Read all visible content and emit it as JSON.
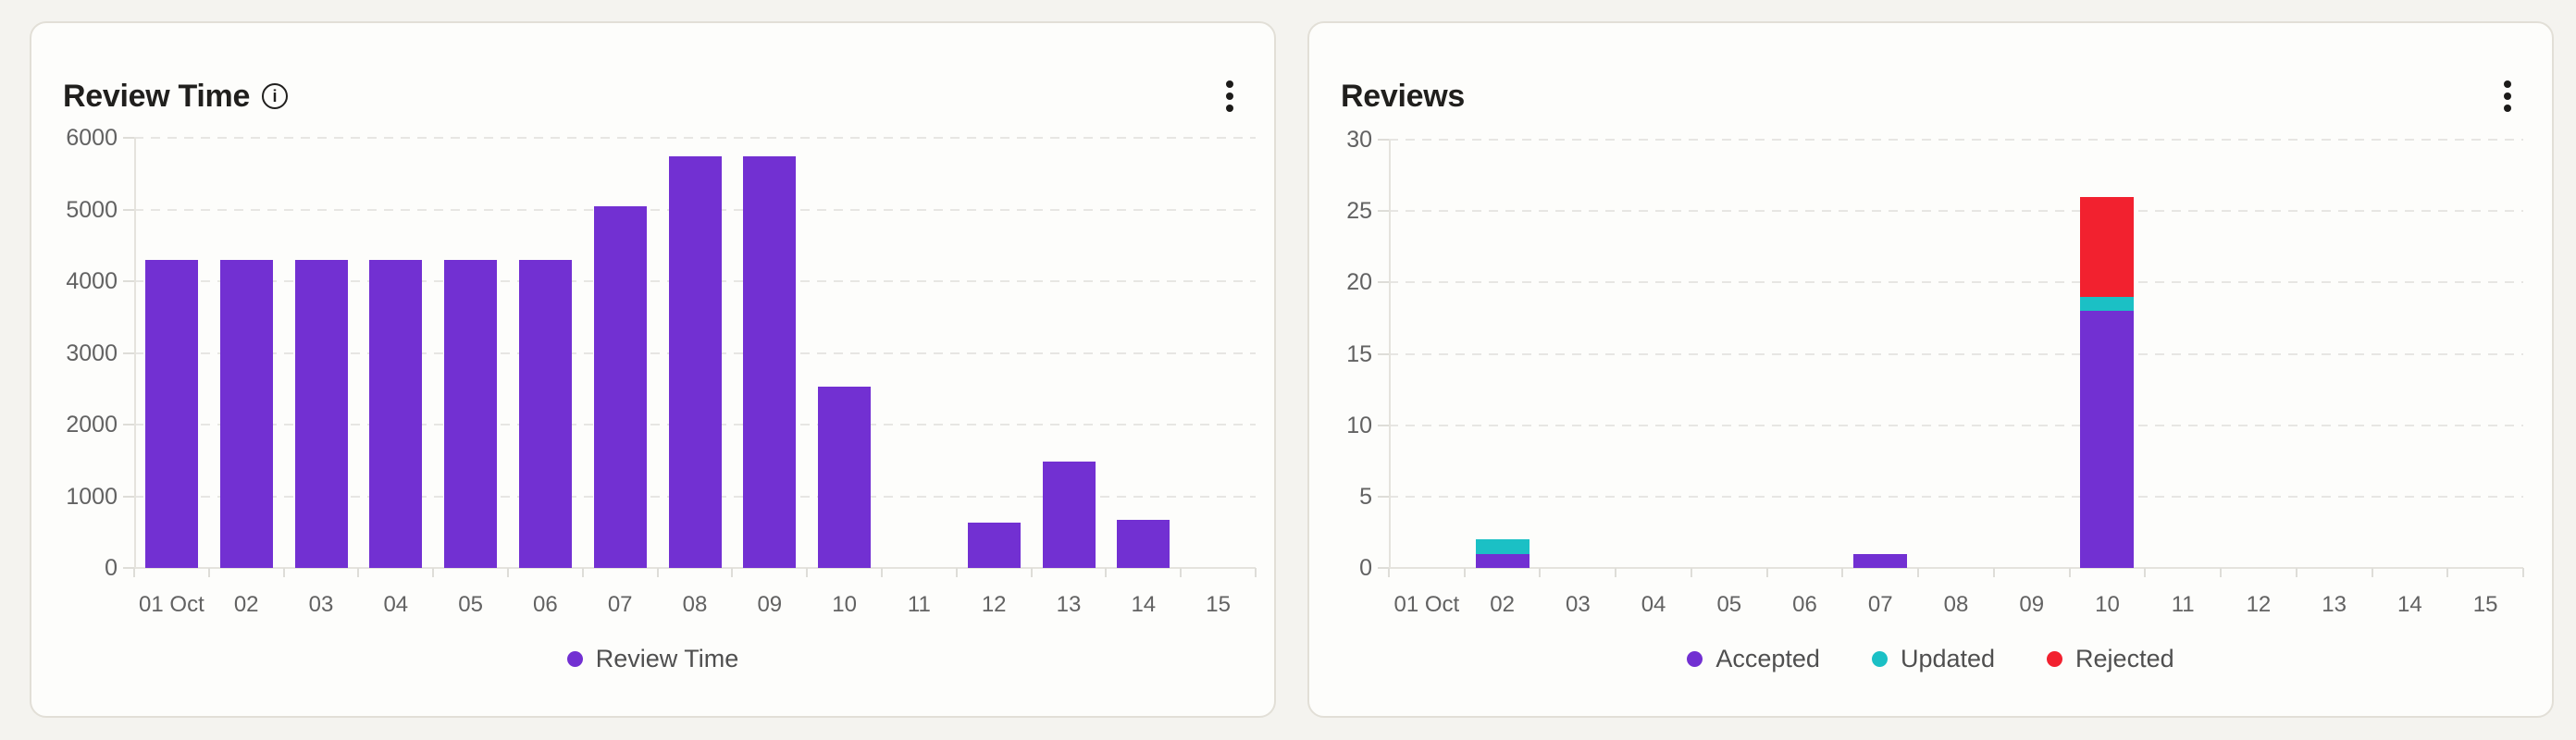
{
  "page": {
    "background_color": "#f4f3ef",
    "card_background": "#fdfdfb",
    "card_border_color": "#e2dfd7"
  },
  "cards": [
    {
      "title": "Review Time",
      "has_info_icon": true,
      "menu_icon": "kebab-vertical"
    },
    {
      "title": "Reviews",
      "has_info_icon": false,
      "menu_icon": "kebab-vertical"
    }
  ],
  "chart_data": [
    {
      "type": "bar",
      "title": "Review Time",
      "stacked": false,
      "categories": [
        "01 Oct",
        "02",
        "03",
        "04",
        "05",
        "06",
        "07",
        "08",
        "09",
        "10",
        "11",
        "12",
        "13",
        "14",
        "15"
      ],
      "series": [
        {
          "name": "Review Time",
          "color": "#7230d2",
          "values": [
            4300,
            4300,
            4300,
            4300,
            4300,
            4300,
            5050,
            5740,
            5740,
            2530,
            0,
            630,
            1480,
            670,
            0
          ]
        }
      ],
      "xlabel": "",
      "ylabel": "",
      "ylim": [
        0,
        6000
      ],
      "ytick_step": 1000,
      "grid": "horizontal-dashed",
      "legend_position": "bottom"
    },
    {
      "type": "bar",
      "title": "Reviews",
      "stacked": true,
      "categories": [
        "01 Oct",
        "02",
        "03",
        "04",
        "05",
        "06",
        "07",
        "08",
        "09",
        "10",
        "11",
        "12",
        "13",
        "14",
        "15"
      ],
      "series": [
        {
          "name": "Accepted",
          "color": "#7230d2",
          "values": [
            0,
            1,
            0,
            0,
            0,
            0,
            1,
            0,
            0,
            18,
            0,
            0,
            0,
            0,
            0
          ]
        },
        {
          "name": "Updated",
          "color": "#1bc0c5",
          "values": [
            0,
            1,
            0,
            0,
            0,
            0,
            0,
            0,
            0,
            1,
            0,
            0,
            0,
            0,
            0
          ]
        },
        {
          "name": "Rejected",
          "color": "#f2212f",
          "values": [
            0,
            0,
            0,
            0,
            0,
            0,
            0,
            0,
            0,
            7,
            0,
            0,
            0,
            0,
            0
          ]
        }
      ],
      "xlabel": "",
      "ylabel": "",
      "ylim": [
        0,
        30
      ],
      "ytick_step": 5,
      "grid": "horizontal-dashed",
      "legend_position": "bottom"
    }
  ]
}
